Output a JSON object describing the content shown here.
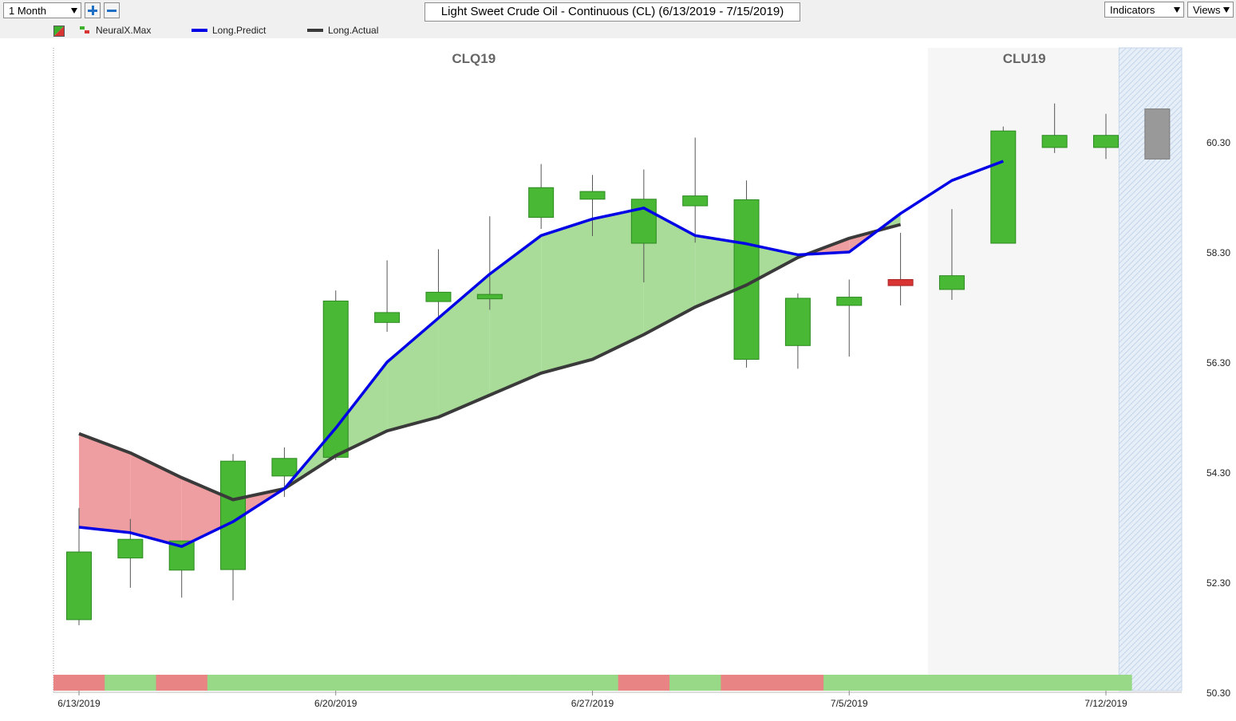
{
  "toolbar": {
    "period": "1 Month",
    "title": "Light Sweet Crude Oil - Continuous (CL) (6/13/2019 - 7/15/2019)",
    "indicators_label": "Indicators",
    "views_label": "Views"
  },
  "legend": [
    {
      "name": "NeuralX.Max",
      "color": "#3cb22c"
    },
    {
      "name": "Long.Predict",
      "color": "#0000e6"
    },
    {
      "name": "Long.Actual",
      "color": "#3a3a3a"
    }
  ],
  "chart_data": {
    "type": "candlestick",
    "title": "Light Sweet Crude Oil - Continuous (CL) (6/13/2019 - 7/15/2019)",
    "ylim": [
      50.3,
      61.3
    ],
    "yticks": [
      50.3,
      52.3,
      54.3,
      56.3,
      58.3,
      60.3
    ],
    "contracts": [
      {
        "label": "CLQ19",
        "from": 0,
        "to": 16
      },
      {
        "label": "CLU19",
        "from": 17,
        "to": 20
      }
    ],
    "xtick_labels": [
      {
        "index": 0,
        "label": "6/13/2019"
      },
      {
        "index": 5,
        "label": "6/20/2019"
      },
      {
        "index": 10,
        "label": "6/27/2019"
      },
      {
        "index": 15,
        "label": "7/5/2019"
      },
      {
        "index": 20,
        "label": "7/12/2019"
      }
    ],
    "candles": [
      {
        "o": 51.62,
        "h": 53.65,
        "l": 51.52,
        "c": 52.85
      },
      {
        "o": 52.74,
        "h": 53.45,
        "l": 52.2,
        "c": 53.08
      },
      {
        "o": 52.52,
        "h": 52.99,
        "l": 52.02,
        "c": 53.05
      },
      {
        "o": 52.53,
        "h": 54.63,
        "l": 51.97,
        "c": 54.5
      },
      {
        "o": 54.23,
        "h": 54.75,
        "l": 53.85,
        "c": 54.55
      },
      {
        "o": 54.57,
        "h": 57.6,
        "l": 54.52,
        "c": 57.41
      },
      {
        "o": 57.02,
        "h": 58.15,
        "l": 56.85,
        "c": 57.2
      },
      {
        "o": 57.4,
        "h": 58.35,
        "l": 57.13,
        "c": 57.57
      },
      {
        "o": 57.45,
        "h": 58.95,
        "l": 57.25,
        "c": 57.53
      },
      {
        "o": 58.93,
        "h": 59.9,
        "l": 58.72,
        "c": 59.47
      },
      {
        "o": 59.26,
        "h": 59.7,
        "l": 58.59,
        "c": 59.4
      },
      {
        "o": 58.46,
        "h": 59.8,
        "l": 57.75,
        "c": 59.26
      },
      {
        "o": 59.14,
        "h": 60.38,
        "l": 58.47,
        "c": 59.32
      },
      {
        "o": 56.35,
        "h": 59.6,
        "l": 56.2,
        "c": 59.25
      },
      {
        "o": 56.6,
        "h": 57.55,
        "l": 56.18,
        "c": 57.46
      },
      {
        "o": 57.33,
        "h": 57.8,
        "l": 56.4,
        "c": 57.48
      },
      {
        "o": 57.8,
        "h": 58.65,
        "l": 57.33,
        "c": 57.69
      },
      {
        "o": 57.62,
        "h": 59.08,
        "l": 57.43,
        "c": 57.87
      },
      {
        "o": 58.46,
        "h": 60.58,
        "l": 58.46,
        "c": 60.5
      },
      {
        "o": 60.2,
        "h": 61.0,
        "l": 60.1,
        "c": 60.42
      },
      {
        "o": 60.2,
        "h": 60.81,
        "l": 59.99,
        "c": 60.42
      },
      {
        "o": 59.99,
        "h": 60.9,
        "l": 59.99,
        "c": 60.9
      }
    ],
    "long_predict": [
      53.3,
      53.2,
      52.95,
      53.4,
      54.0,
      55.1,
      56.3,
      57.1,
      57.9,
      58.6,
      58.9,
      59.1,
      58.6,
      58.45,
      58.25,
      58.3,
      59.0,
      59.6,
      59.95
    ],
    "long_actual": [
      55.0,
      54.65,
      54.2,
      53.8,
      54.0,
      54.6,
      55.05,
      55.3,
      55.7,
      56.1,
      56.35,
      56.8,
      57.3,
      57.7,
      58.2,
      58.55,
      58.8
    ],
    "neuralx_signal": [
      -1,
      1,
      -1,
      1,
      1,
      1,
      1,
      1,
      1,
      1,
      1,
      -1,
      1,
      -1,
      -1,
      1,
      1,
      1,
      1,
      1,
      1
    ]
  }
}
